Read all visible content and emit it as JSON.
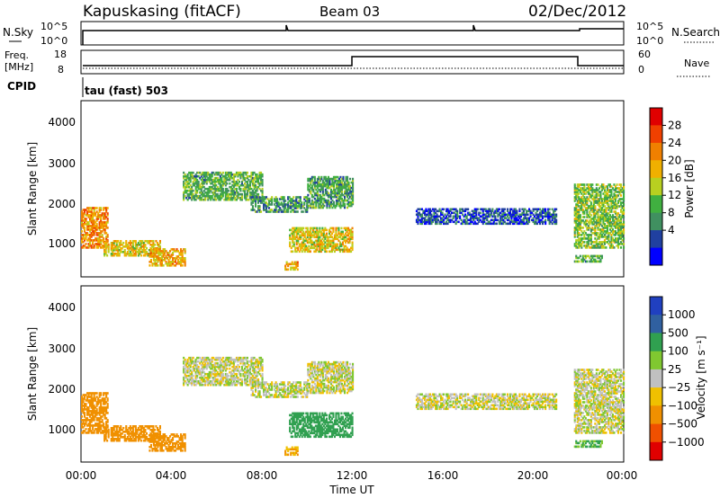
{
  "header": {
    "station": "Kapuskasing (fitACF)",
    "beam": "Beam 03",
    "date": "02/Dec/2012"
  },
  "panels": {
    "nsky_label": "N.Sky",
    "nsky_ticks": [
      "10^5",
      "10^0"
    ],
    "nsearch_label": "N.Search",
    "nsearch_ticks": [
      "10^5",
      "10^0"
    ],
    "freq_label_line1": "Freq.",
    "freq_label_line2": "[MHz]",
    "freq_ticks": [
      "18",
      "8"
    ],
    "nave_label": "Nave",
    "nave_ticks": [
      "60",
      "0"
    ],
    "cpid_label": "CPID",
    "cpid_text": "tau (fast) 503"
  },
  "power_colorbar": {
    "label": "Power [dB]",
    "ticks": [
      "28",
      "24",
      "20",
      "16",
      "12",
      "8",
      "4"
    ],
    "colors": [
      "#e00000",
      "#f04000",
      "#f08000",
      "#f0b000",
      "#b8d020",
      "#40b040",
      "#409060",
      "#2040a0",
      "#0000ff"
    ]
  },
  "velocity_colorbar": {
    "label": "Velocity [m s⁻¹]",
    "ticks": [
      "1000",
      "500",
      "100",
      "25",
      "−25",
      "−100",
      "−500",
      "−1000"
    ],
    "colors": [
      "#2040c0",
      "#3060a0",
      "#30a050",
      "#80c830",
      "#c0c0c0",
      "#f0c000",
      "#f09000",
      "#f05000",
      "#e00000"
    ]
  },
  "chart_data": {
    "type": "heatmap",
    "x_ticks": [
      "00:00",
      "04:00",
      "08:00",
      "12:00",
      "16:00",
      "20:00",
      "00:00"
    ],
    "x_range_hours": [
      0,
      24
    ],
    "xlabel": "Time UT",
    "ylabel": "Slant Range [km]",
    "y_ticks": [
      "4000",
      "3000",
      "2000",
      "1000"
    ],
    "y_range_km": [
      180,
      4600
    ],
    "frequency_step": {
      "low_mhz": 8.5,
      "high_mhz": 16,
      "start_hour": 12,
      "end_hour": 22
    },
    "echo_regions": [
      {
        "t0": 0.0,
        "t1": 1.2,
        "r0": 900,
        "r1": 1900,
        "power": 22,
        "vel": -400
      },
      {
        "t0": 1.0,
        "t1": 3.5,
        "r0": 700,
        "r1": 1100,
        "power": 18,
        "vel": -200
      },
      {
        "t0": 3.0,
        "t1": 4.6,
        "r0": 450,
        "r1": 900,
        "power": 20,
        "vel": -300
      },
      {
        "t0": 4.5,
        "t1": 8.0,
        "r0": 2100,
        "r1": 2800,
        "power": 12,
        "vel": 0
      },
      {
        "t0": 7.5,
        "t1": 10.0,
        "r0": 1800,
        "r1": 2200,
        "power": 10,
        "vel": 0
      },
      {
        "t0": 10.0,
        "t1": 12.0,
        "r0": 1900,
        "r1": 2700,
        "power": 11,
        "vel": 0
      },
      {
        "t0": 9.2,
        "t1": 12.0,
        "r0": 800,
        "r1": 1400,
        "power": 18,
        "vel": 150
      },
      {
        "t0": 9.0,
        "t1": 9.6,
        "r0": 350,
        "r1": 550,
        "power": 20,
        "vel": -100
      },
      {
        "t0": 14.8,
        "t1": 21.0,
        "r0": 1500,
        "r1": 1900,
        "power": 6,
        "vel": 0
      },
      {
        "t0": 21.8,
        "t1": 24.0,
        "r0": 900,
        "r1": 2500,
        "power": 14,
        "vel": 0
      },
      {
        "t0": 21.8,
        "t1": 23.0,
        "r0": 550,
        "r1": 700,
        "power": 12,
        "vel": 80
      }
    ]
  }
}
